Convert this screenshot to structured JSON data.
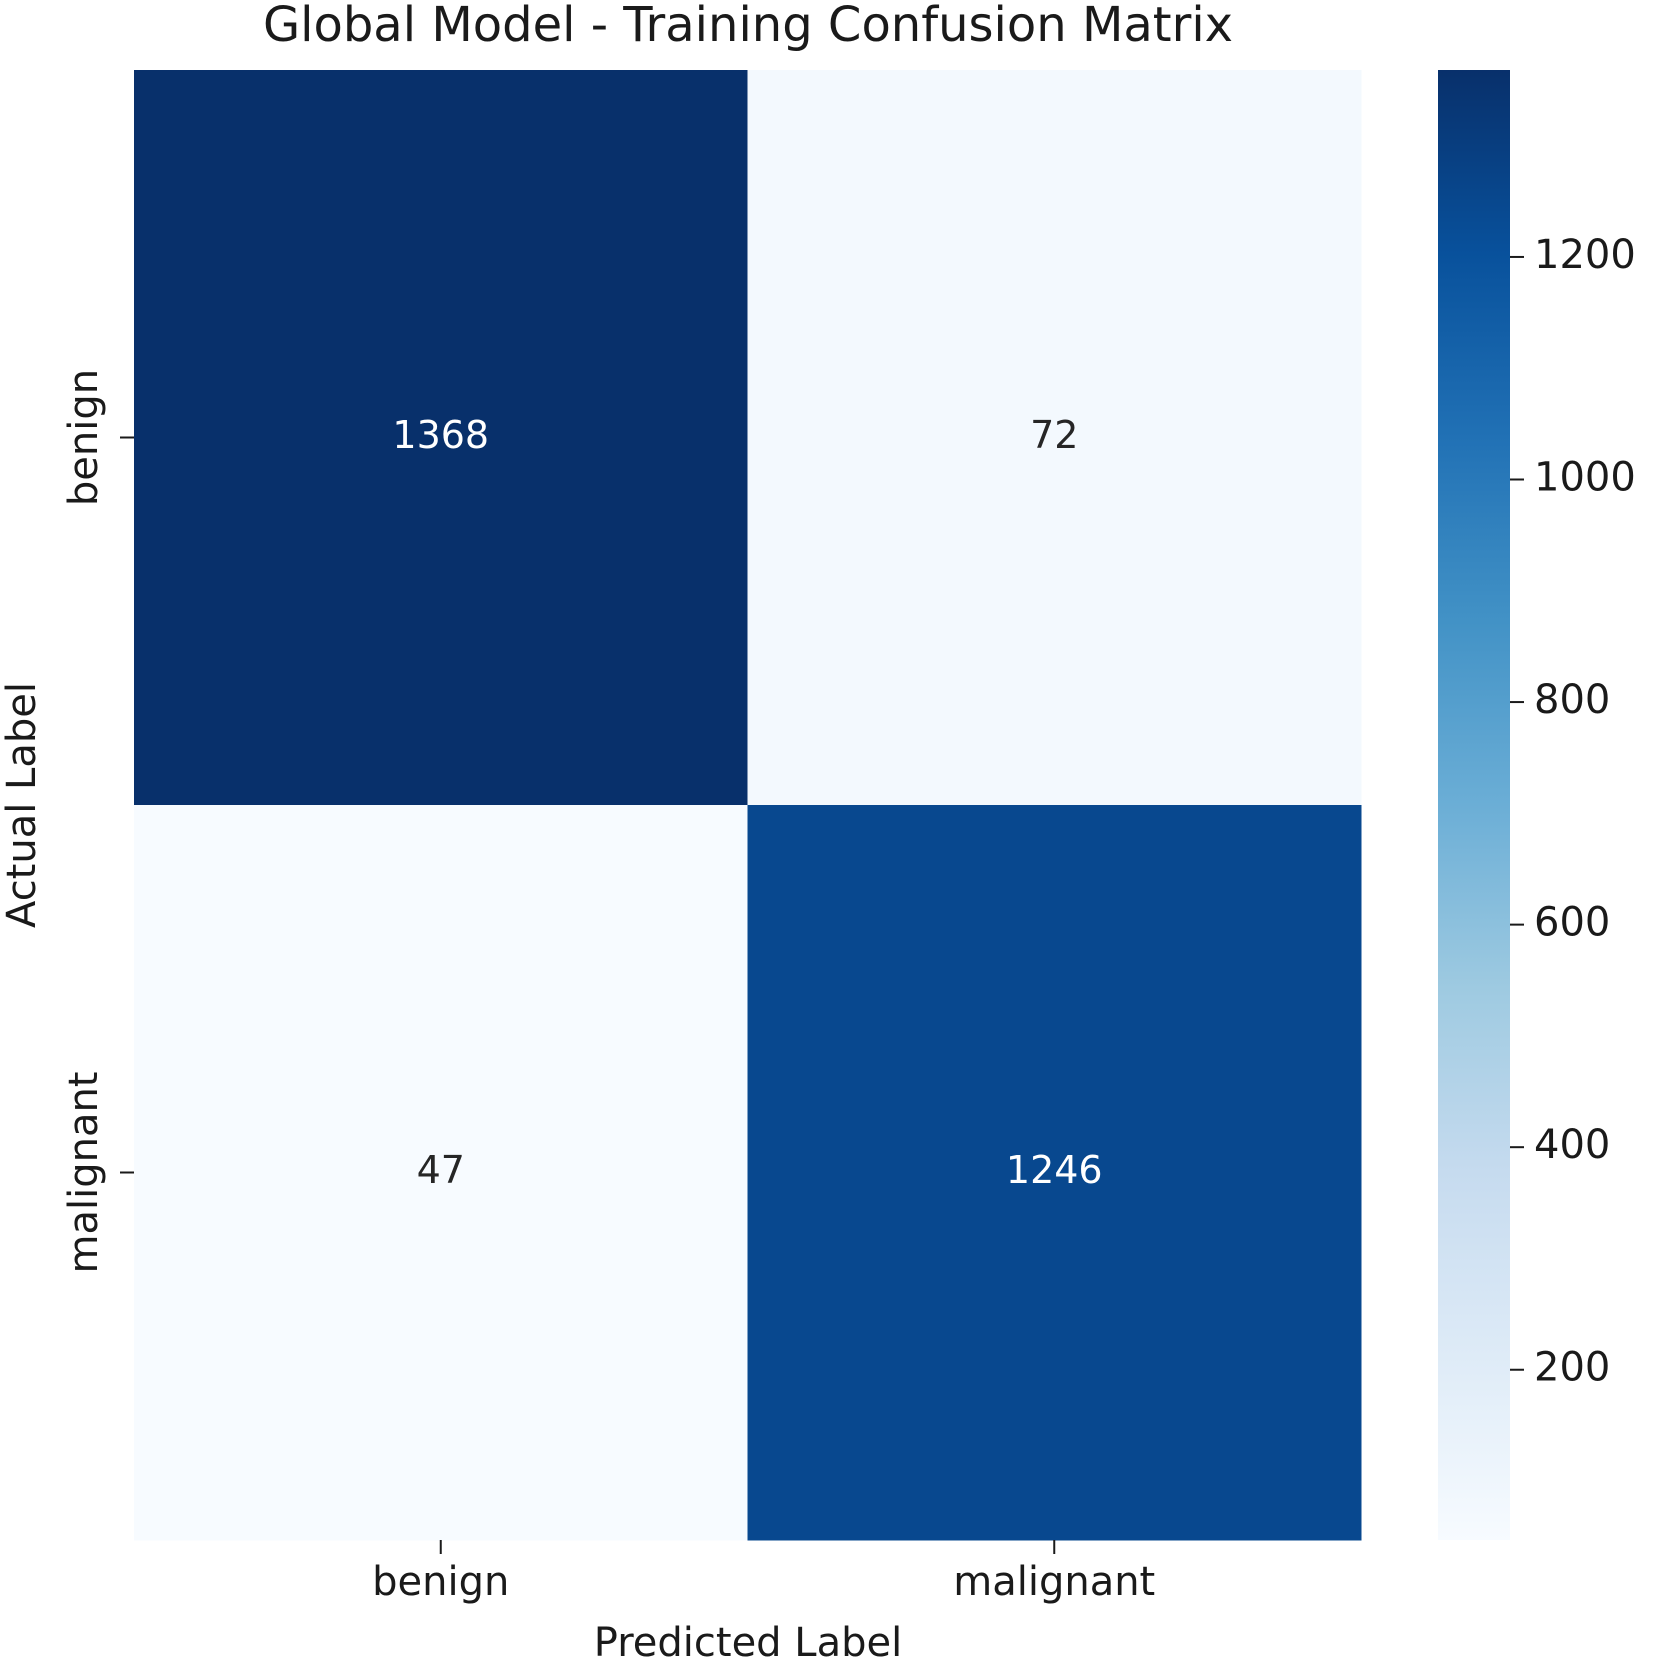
{
  "chart_data": {
    "type": "heatmap",
    "title": "Global Model - Training Confusion Matrix",
    "xlabel": "Predicted Label",
    "ylabel": "Actual Label",
    "x_categories": [
      "benign",
      "malignant"
    ],
    "y_categories": [
      "benign",
      "malignant"
    ],
    "values": [
      [
        1368,
        72
      ],
      [
        47,
        1246
      ]
    ],
    "colormap": "Blues",
    "clim": [
      47,
      1368
    ],
    "cticks": [
      200,
      400,
      600,
      800,
      1000,
      1200
    ]
  }
}
